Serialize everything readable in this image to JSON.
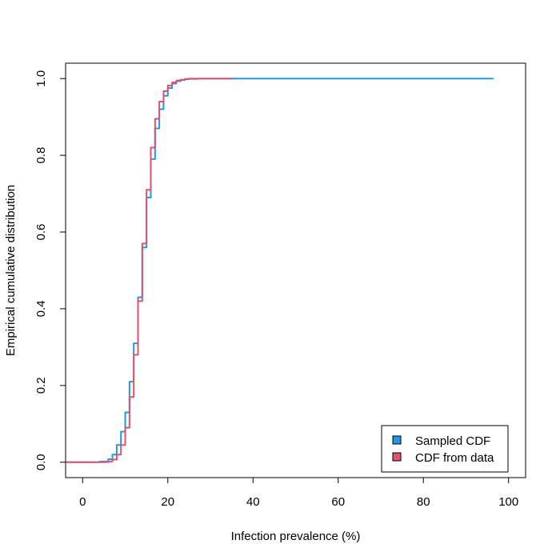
{
  "chart_data": {
    "type": "line",
    "title": "",
    "xlabel": "Infection prevalence (%)",
    "ylabel": "Empirical cumulative distribution",
    "xlim": [
      -4,
      104
    ],
    "ylim": [
      -0.04,
      1.04
    ],
    "x_ticks": [
      0,
      20,
      40,
      60,
      80,
      100
    ],
    "y_ticks": [
      0.0,
      0.2,
      0.4,
      0.6,
      0.8,
      1.0
    ],
    "x_tick_labels": [
      "0",
      "20",
      "40",
      "60",
      "80",
      "100"
    ],
    "y_tick_labels": [
      "0.0",
      "0.2",
      "0.4",
      "0.6",
      "0.8",
      "1.0"
    ],
    "grid": false,
    "legend_position": "bottom-right",
    "series": [
      {
        "name": "Sampled CDF",
        "color": "#2297E6",
        "x": [
          -4,
          0,
          4,
          6,
          7,
          8,
          9,
          10,
          11,
          12,
          13,
          14,
          15,
          16,
          17,
          18,
          19,
          20,
          21,
          22,
          23,
          24,
          25,
          27,
          30,
          35,
          50,
          70,
          96.5
        ],
        "y": [
          0,
          0,
          0.002,
          0.008,
          0.02,
          0.045,
          0.08,
          0.13,
          0.21,
          0.31,
          0.43,
          0.56,
          0.69,
          0.79,
          0.87,
          0.92,
          0.955,
          0.975,
          0.987,
          0.993,
          0.996,
          0.998,
          0.999,
          1.0,
          1.0,
          1.0,
          1.0,
          1.0,
          1.0
        ]
      },
      {
        "name": "CDF from data",
        "color": "#DF536B",
        "x": [
          -4,
          0,
          5,
          6,
          7,
          8,
          9,
          10,
          11,
          12,
          13,
          14,
          15,
          16,
          17,
          18,
          19,
          20,
          21,
          22,
          23,
          24,
          25,
          27,
          30,
          35
        ],
        "y": [
          0,
          0,
          0.0005,
          0.002,
          0.007,
          0.02,
          0.045,
          0.09,
          0.17,
          0.28,
          0.42,
          0.57,
          0.71,
          0.82,
          0.895,
          0.94,
          0.967,
          0.982,
          0.99,
          0.995,
          0.997,
          0.999,
          1.0,
          1.0,
          1.0,
          1.0
        ]
      }
    ]
  }
}
